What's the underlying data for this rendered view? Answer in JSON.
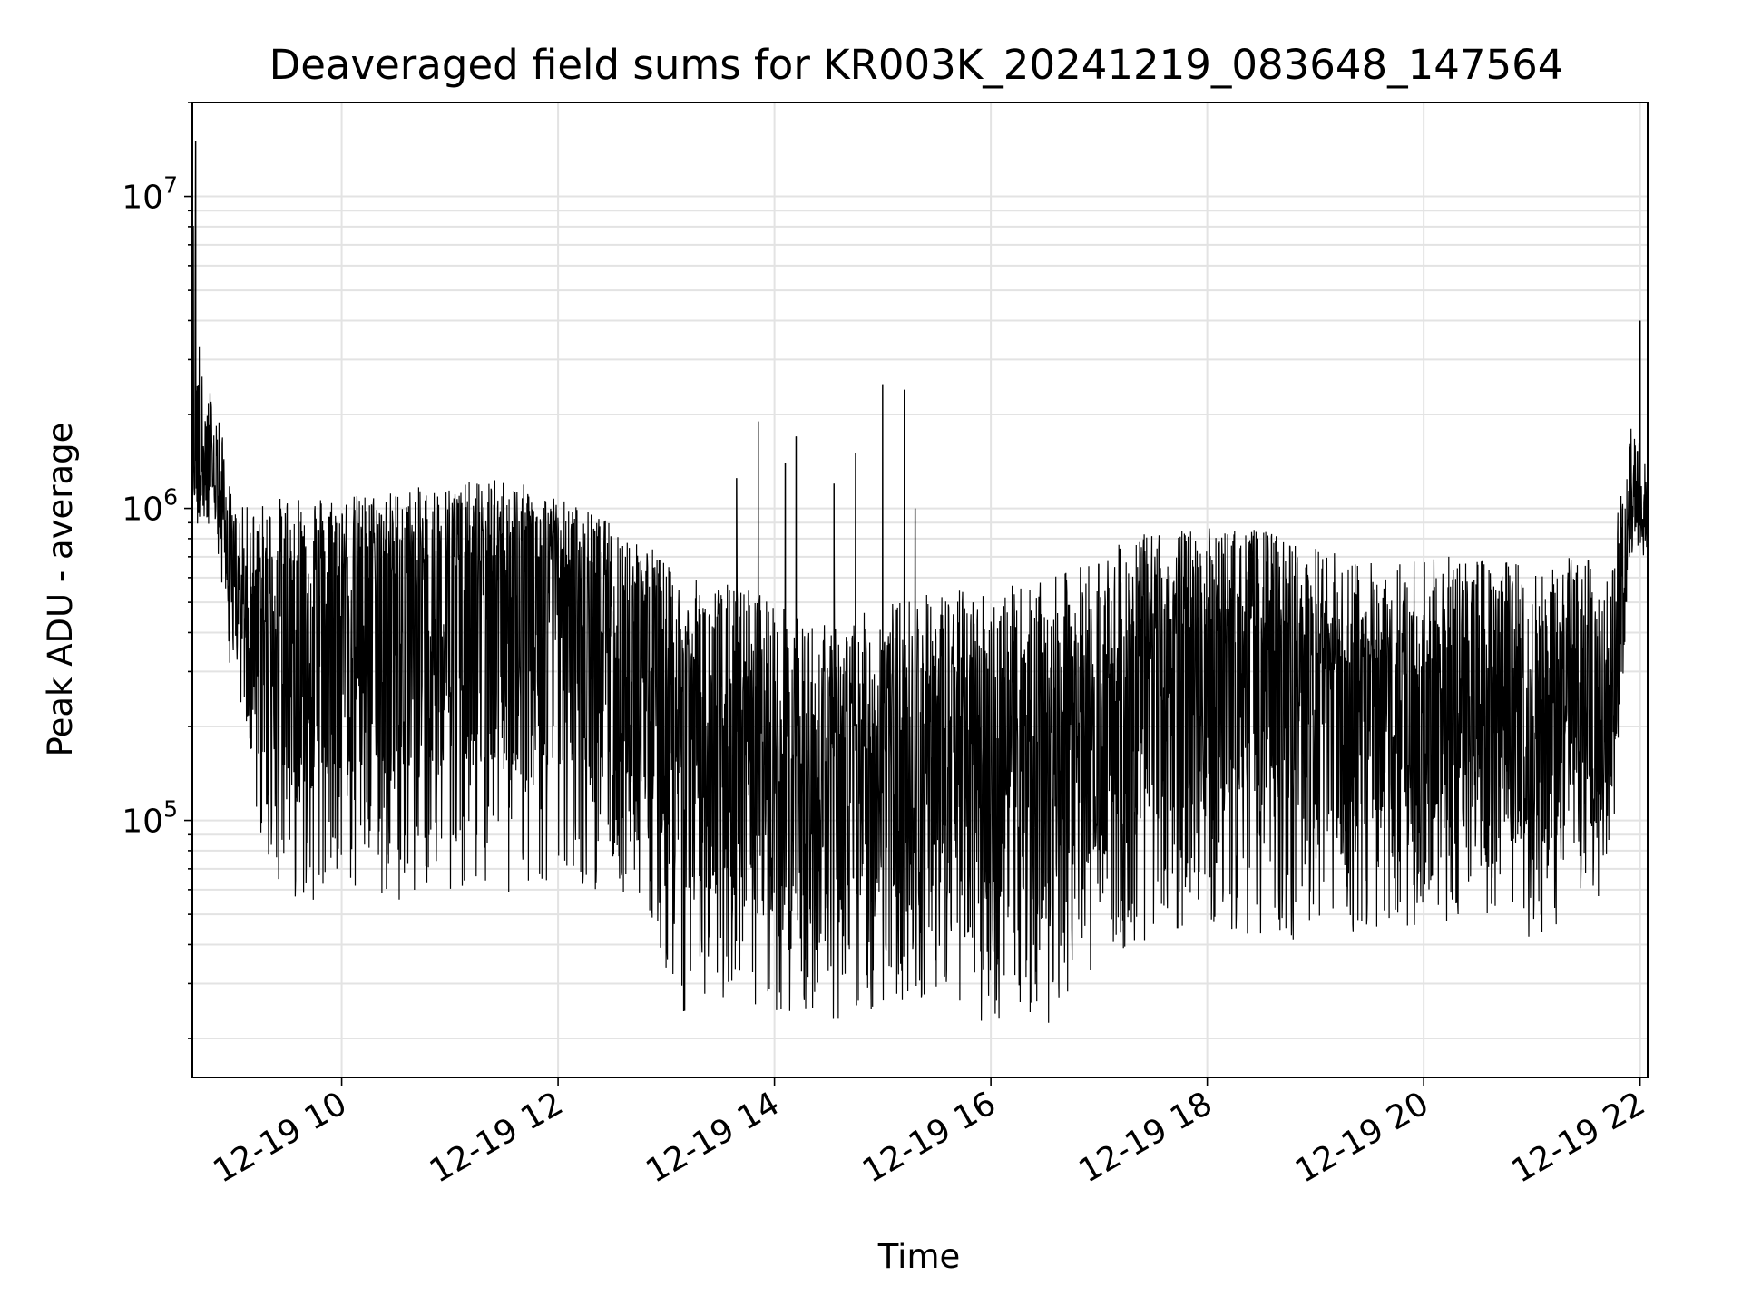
{
  "chart_data": {
    "type": "line",
    "title": "Deaveraged field sums for KR003K_20241219_083648_147564",
    "xlabel": "Time",
    "ylabel": "Peak ADU - average",
    "x_start": "12-19 08:37",
    "x_end": "12-19 22:04",
    "xlim_hours": [
      8.62,
      22.07
    ],
    "yscale": "log",
    "ylim": [
      15000,
      20000000
    ],
    "grid": true,
    "line_color": "#000000",
    "grid_color": "#e3e3e3",
    "x_ticks": [
      {
        "value": 10,
        "label": "12-19 10"
      },
      {
        "value": 12,
        "label": "12-19 12"
      },
      {
        "value": 14,
        "label": "12-19 14"
      },
      {
        "value": 16,
        "label": "12-19 16"
      },
      {
        "value": 18,
        "label": "12-19 18"
      },
      {
        "value": 20,
        "label": "12-19 20"
      },
      {
        "value": 22,
        "label": "12-19 22"
      }
    ],
    "y_ticks": [
      {
        "value": 100000,
        "base": "10",
        "exp": "5"
      },
      {
        "value": 1000000,
        "base": "10",
        "exp": "6"
      },
      {
        "value": 10000000,
        "base": "10",
        "exp": "7"
      }
    ],
    "series": [
      {
        "name": "",
        "envelope": {
          "x_hours": [
            8.62,
            8.7,
            8.85,
            9.0,
            9.3,
            9.6,
            10.0,
            10.5,
            11.0,
            11.5,
            12.0,
            12.5,
            12.9,
            13.1,
            13.5,
            13.9,
            14.2,
            14.6,
            15.0,
            15.5,
            16.0,
            16.5,
            17.0,
            17.5,
            18.0,
            18.5,
            19.0,
            19.5,
            20.0,
            20.5,
            21.0,
            21.5,
            21.7,
            21.8,
            21.9,
            22.07
          ],
          "upper": [
            12000000,
            2800000,
            2200000,
            1000000,
            1050000,
            1150000,
            1100000,
            1150000,
            1200000,
            1250000,
            1100000,
            900000,
            750000,
            600000,
            580000,
            560000,
            450000,
            420000,
            500000,
            550000,
            560000,
            580000,
            720000,
            850000,
            870000,
            860000,
            750000,
            680000,
            700000,
            700000,
            680000,
            700000,
            650000,
            1000000,
            1900000,
            1400000
          ],
          "typical": [
            1500000,
            1300000,
            1200000,
            600000,
            500000,
            550000,
            600000,
            600000,
            650000,
            700000,
            650000,
            500000,
            400000,
            250000,
            200000,
            180000,
            160000,
            160000,
            180000,
            200000,
            180000,
            200000,
            250000,
            350000,
            400000,
            400000,
            300000,
            280000,
            280000,
            280000,
            250000,
            250000,
            200000,
            400000,
            1000000,
            1000000
          ],
          "lower": [
            800000,
            900000,
            700000,
            250000,
            70000,
            55000,
            55000,
            55000,
            60000,
            55000,
            60000,
            60000,
            45000,
            24000,
            26000,
            20000,
            24000,
            22000,
            25000,
            26000,
            22000,
            21000,
            35000,
            40000,
            45000,
            42000,
            40000,
            45000,
            45000,
            45000,
            40000,
            50000,
            55000,
            150000,
            700000,
            700000
          ]
        },
        "spikes": [
          {
            "x_hours": 8.65,
            "value": 15000000
          },
          {
            "x_hours": 13.65,
            "value": 1250000
          },
          {
            "x_hours": 13.85,
            "value": 1900000
          },
          {
            "x_hours": 14.1,
            "value": 1400000
          },
          {
            "x_hours": 14.2,
            "value": 1700000
          },
          {
            "x_hours": 14.55,
            "value": 1200000
          },
          {
            "x_hours": 14.75,
            "value": 1500000
          },
          {
            "x_hours": 15.0,
            "value": 2500000
          },
          {
            "x_hours": 15.2,
            "value": 2400000
          },
          {
            "x_hours": 15.3,
            "value": 1000000
          },
          {
            "x_hours": 22.0,
            "value": 4000000
          }
        ]
      }
    ]
  }
}
